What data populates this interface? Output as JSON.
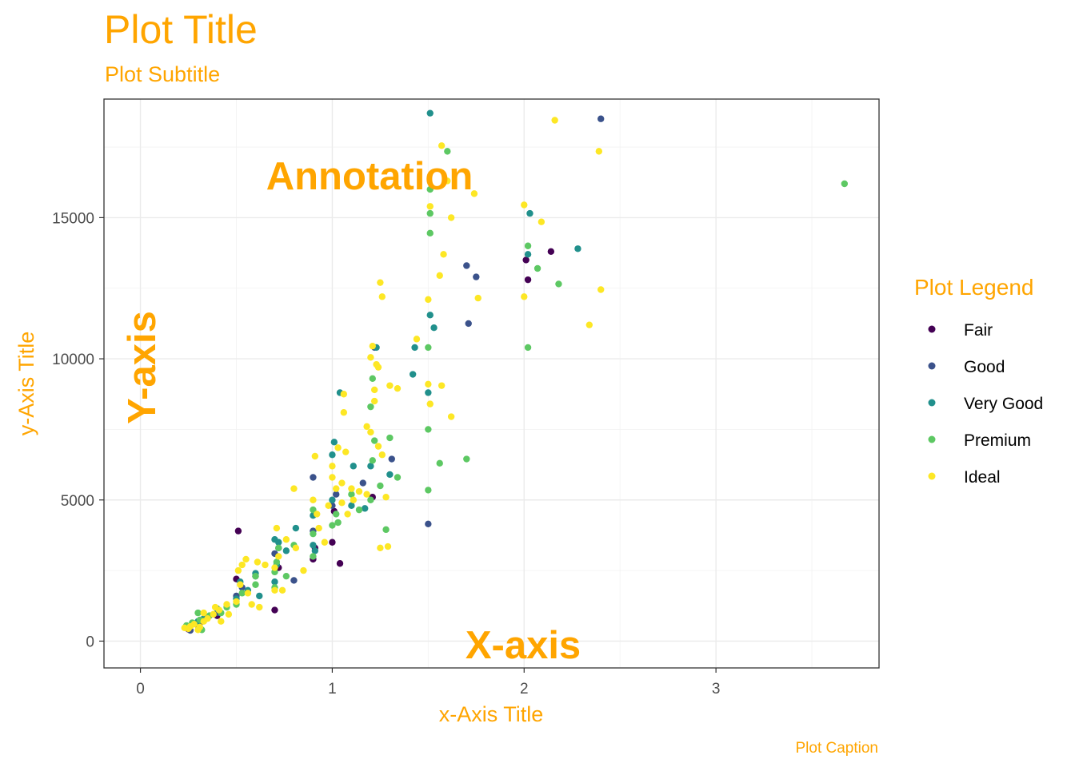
{
  "chart_data": {
    "type": "scatter",
    "title": "Plot Title",
    "subtitle": "Plot Subtitle",
    "xlabel": "x-Axis Title",
    "ylabel": "y-Axis Title",
    "caption": "Plot Caption",
    "legend_title": "Plot Legend",
    "legend_position": "right",
    "grid": true,
    "xlim": [
      -0.19,
      3.85
    ],
    "ylim": [
      -950,
      19200
    ],
    "x_ticks": [
      0,
      1,
      2,
      3
    ],
    "x_tick_labels": [
      "0",
      "1",
      "2",
      "3"
    ],
    "y_ticks": [
      0,
      5000,
      10000,
      15000
    ],
    "y_tick_labels": [
      "0",
      "5000",
      "10000",
      "15000"
    ],
    "annotations": [
      {
        "text": "Annotation",
        "x": 1.2,
        "y": 16700
      },
      {
        "text": "X-axis",
        "x": 2.0,
        "y": 0
      },
      {
        "text": "Y-axis",
        "x": 0,
        "y": 10000,
        "rotation": -90
      }
    ],
    "series": [
      {
        "name": "Fair",
        "color": "#440154",
        "points": [
          [
            0.51,
            3900
          ],
          [
            1.04,
            2750
          ],
          [
            2.01,
            13500
          ],
          [
            2.02,
            12800
          ],
          [
            2.14,
            13800
          ],
          [
            0.7,
            1100
          ],
          [
            0.9,
            2900
          ],
          [
            0.31,
            650
          ],
          [
            0.4,
            900
          ],
          [
            1.01,
            4600
          ],
          [
            0.5,
            2200
          ],
          [
            1.0,
            3500
          ],
          [
            0.72,
            2600
          ],
          [
            0.3,
            560
          ],
          [
            0.25,
            420
          ],
          [
            1.21,
            5100
          ],
          [
            0.91,
            3300
          ]
        ]
      },
      {
        "name": "Good",
        "color": "#3B528B",
        "points": [
          [
            2.4,
            18500
          ],
          [
            1.5,
            4150
          ],
          [
            1.31,
            6450
          ],
          [
            1.7,
            13300
          ],
          [
            1.71,
            11250
          ],
          [
            1.75,
            12900
          ],
          [
            0.9,
            5800
          ],
          [
            0.8,
            2150
          ],
          [
            0.7,
            3100
          ],
          [
            0.5,
            1600
          ],
          [
            0.3,
            600
          ],
          [
            0.26,
            380
          ],
          [
            0.4,
            1000
          ],
          [
            1.0,
            4800
          ],
          [
            1.16,
            5600
          ],
          [
            0.72,
            3300
          ],
          [
            0.53,
            1900
          ],
          [
            0.6,
            2300
          ],
          [
            1.02,
            5200
          ],
          [
            0.9,
            3900
          ],
          [
            0.35,
            820
          ],
          [
            1.22,
            10400
          ]
        ]
      },
      {
        "name": "Very Good",
        "color": "#21908C",
        "points": [
          [
            1.51,
            18700
          ],
          [
            2.03,
            15150
          ],
          [
            2.02,
            13700
          ],
          [
            2.28,
            13900
          ],
          [
            1.51,
            11550
          ],
          [
            1.53,
            11100
          ],
          [
            1.43,
            10400
          ],
          [
            1.5,
            8800
          ],
          [
            1.23,
            10400
          ],
          [
            1.04,
            8800
          ],
          [
            1.01,
            7050
          ],
          [
            1.0,
            6600
          ],
          [
            1.42,
            9450
          ],
          [
            1.2,
            6200
          ],
          [
            1.11,
            6200
          ],
          [
            1.3,
            5900
          ],
          [
            0.9,
            4450
          ],
          [
            0.7,
            3600
          ],
          [
            0.72,
            3500
          ],
          [
            0.76,
            3200
          ],
          [
            0.81,
            4000
          ],
          [
            0.91,
            3200
          ],
          [
            1.0,
            5000
          ],
          [
            0.52,
            2100
          ],
          [
            0.6,
            2400
          ],
          [
            0.5,
            1500
          ],
          [
            0.3,
            700
          ],
          [
            0.4,
            1150
          ],
          [
            0.33,
            800
          ],
          [
            0.25,
            450
          ],
          [
            0.7,
            2100
          ],
          [
            1.1,
            4800
          ],
          [
            1.17,
            4700
          ],
          [
            0.9,
            3400
          ],
          [
            0.71,
            2700
          ],
          [
            0.56,
            1800
          ],
          [
            0.62,
            1600
          ]
        ]
      },
      {
        "name": "Premium",
        "color": "#5DC863",
        "points": [
          [
            3.67,
            16200
          ],
          [
            1.6,
            17350
          ],
          [
            1.51,
            16000
          ],
          [
            1.51,
            15150
          ],
          [
            1.51,
            14450
          ],
          [
            2.02,
            14000
          ],
          [
            2.07,
            13200
          ],
          [
            2.18,
            12650
          ],
          [
            2.02,
            10400
          ],
          [
            1.5,
            10400
          ],
          [
            1.21,
            9300
          ],
          [
            1.2,
            8300
          ],
          [
            1.5,
            7500
          ],
          [
            1.22,
            7100
          ],
          [
            1.3,
            7200
          ],
          [
            1.21,
            6400
          ],
          [
            1.56,
            6300
          ],
          [
            1.7,
            6450
          ],
          [
            1.5,
            5350
          ],
          [
            1.34,
            5800
          ],
          [
            1.2,
            5000
          ],
          [
            1.28,
            3950
          ],
          [
            1.02,
            4500
          ],
          [
            1.0,
            4100
          ],
          [
            1.03,
            4200
          ],
          [
            0.9,
            4650
          ],
          [
            0.8,
            3400
          ],
          [
            0.71,
            2800
          ],
          [
            0.7,
            2450
          ],
          [
            0.6,
            2000
          ],
          [
            0.53,
            1700
          ],
          [
            0.5,
            1300
          ],
          [
            0.42,
            1000
          ],
          [
            0.36,
            900
          ],
          [
            0.31,
            750
          ],
          [
            0.3,
            1000
          ],
          [
            0.24,
            550
          ],
          [
            0.27,
            650
          ],
          [
            0.9,
            3800
          ],
          [
            0.72,
            3300
          ],
          [
            0.6,
            2300
          ],
          [
            1.1,
            5200
          ],
          [
            1.14,
            4650
          ],
          [
            0.9,
            3000
          ],
          [
            0.32,
            400
          ],
          [
            0.45,
            1200
          ],
          [
            1.25,
            5500
          ],
          [
            0.7,
            1900
          ],
          [
            0.76,
            2300
          ]
        ]
      },
      {
        "name": "Ideal",
        "color": "#FDE725",
        "points": [
          [
            2.16,
            18450
          ],
          [
            2.39,
            17350
          ],
          [
            1.57,
            17550
          ],
          [
            1.6,
            16300
          ],
          [
            1.62,
            15000
          ],
          [
            1.74,
            15850
          ],
          [
            2.0,
            15450
          ],
          [
            2.09,
            14850
          ],
          [
            1.58,
            13700
          ],
          [
            1.56,
            12950
          ],
          [
            2.0,
            12200
          ],
          [
            2.4,
            12450
          ],
          [
            2.34,
            11200
          ],
          [
            1.76,
            12150
          ],
          [
            1.25,
            12700
          ],
          [
            1.26,
            12200
          ],
          [
            1.5,
            12100
          ],
          [
            1.51,
            15400
          ],
          [
            1.44,
            10700
          ],
          [
            1.5,
            9100
          ],
          [
            1.57,
            9050
          ],
          [
            1.62,
            7950
          ],
          [
            1.21,
            10450
          ],
          [
            1.2,
            10050
          ],
          [
            1.23,
            9800
          ],
          [
            1.24,
            9700
          ],
          [
            1.3,
            9050
          ],
          [
            1.34,
            8950
          ],
          [
            1.22,
            8900
          ],
          [
            1.51,
            8400
          ],
          [
            1.06,
            8750
          ],
          [
            1.06,
            8100
          ],
          [
            1.18,
            7600
          ],
          [
            1.2,
            7400
          ],
          [
            1.24,
            6900
          ],
          [
            1.26,
            6600
          ],
          [
            1.03,
            6850
          ],
          [
            1.07,
            6700
          ],
          [
            1.0,
            6200
          ],
          [
            1.0,
            5800
          ],
          [
            0.91,
            6550
          ],
          [
            0.8,
            5400
          ],
          [
            1.1,
            5400
          ],
          [
            1.14,
            5300
          ],
          [
            1.18,
            5200
          ],
          [
            1.28,
            5100
          ],
          [
            1.25,
            3300
          ],
          [
            1.29,
            3350
          ],
          [
            1.08,
            4500
          ],
          [
            1.05,
            4900
          ],
          [
            1.02,
            5400
          ],
          [
            0.92,
            4500
          ],
          [
            0.9,
            5000
          ],
          [
            0.71,
            4000
          ],
          [
            0.81,
            3300
          ],
          [
            0.85,
            2500
          ],
          [
            0.72,
            3000
          ],
          [
            0.7,
            2600
          ],
          [
            0.7,
            1800
          ],
          [
            0.74,
            1800
          ],
          [
            0.61,
            2800
          ],
          [
            0.55,
            2900
          ],
          [
            0.53,
            2700
          ],
          [
            0.51,
            2500
          ],
          [
            0.52,
            2000
          ],
          [
            0.56,
            1700
          ],
          [
            0.58,
            1300
          ],
          [
            0.5,
            1400
          ],
          [
            0.45,
            1300
          ],
          [
            0.41,
            1100
          ],
          [
            0.38,
            950
          ],
          [
            0.35,
            800
          ],
          [
            0.33,
            700
          ],
          [
            0.31,
            500
          ],
          [
            0.3,
            400
          ],
          [
            0.28,
            600
          ],
          [
            0.26,
            520
          ],
          [
            0.25,
            440
          ],
          [
            0.23,
            470
          ],
          [
            0.33,
            1000
          ],
          [
            0.39,
            1200
          ],
          [
            0.42,
            700
          ],
          [
            0.46,
            950
          ],
          [
            0.62,
            1200
          ],
          [
            0.65,
            2700
          ],
          [
            0.76,
            3600
          ],
          [
            0.93,
            4000
          ],
          [
            0.96,
            3500
          ],
          [
            1.11,
            5000
          ],
          [
            1.05,
            5600
          ],
          [
            0.98,
            4800
          ],
          [
            1.22,
            8500
          ]
        ]
      }
    ]
  }
}
